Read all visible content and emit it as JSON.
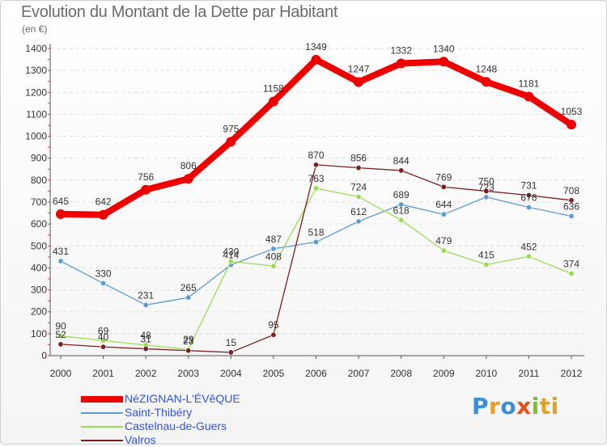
{
  "title": "Evolution du Montant de la Dette par Habitant",
  "unit_label": "(en €)",
  "brand": [
    "P",
    "r",
    "o",
    "x",
    "i",
    "ti"
  ],
  "chart_data": {
    "type": "line",
    "title": "Evolution du Montant de la Dette par Habitant",
    "ylabel": "(en €)",
    "ylim": [
      0,
      1400
    ],
    "yticks": [
      0,
      100,
      200,
      300,
      400,
      500,
      600,
      700,
      800,
      900,
      1000,
      1100,
      1200,
      1300,
      1400
    ],
    "x": [
      "2000",
      "2001",
      "2002",
      "2003",
      "2004",
      "2005",
      "2006",
      "2007",
      "2008",
      "2009",
      "2010",
      "2011",
      "2012"
    ],
    "grid": "horizontal dashed",
    "legend_position": "bottom-left",
    "series": [
      {
        "name": "NéZIGNAN-L'ÉVêQUE",
        "color": "#ee0000",
        "values": [
          645,
          642,
          756,
          806,
          975,
          1158,
          1349,
          1247,
          1332,
          1340,
          1248,
          1181,
          1053
        ]
      },
      {
        "name": "Saint-Thibéry",
        "color": "#5b9bd5",
        "values": [
          431,
          330,
          231,
          265,
          414,
          487,
          518,
          612,
          689,
          644,
          723,
          676,
          636
        ]
      },
      {
        "name": "Castelnau-de-Guers",
        "color": "#99dd55",
        "values": [
          90,
          69,
          48,
          29,
          430,
          408,
          763,
          724,
          618,
          479,
          415,
          452,
          374
        ]
      },
      {
        "name": "Valros",
        "color": "#7a1f1f",
        "values": [
          52,
          40,
          31,
          23,
          15,
          95,
          870,
          856,
          844,
          769,
          750,
          731,
          708
        ]
      }
    ]
  }
}
